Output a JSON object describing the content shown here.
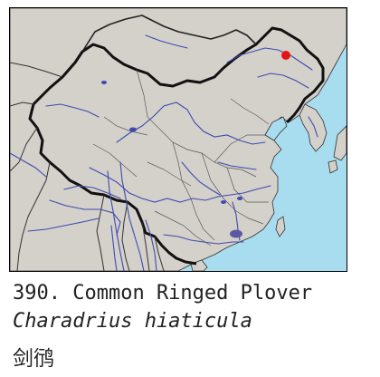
{
  "map": {
    "region": "China",
    "land_color": "#d4d0ca",
    "sea_color": "#a8dcef",
    "border_color": "#111111",
    "river_color": "#3e4ab0",
    "markers": [
      {
        "type": "point-record",
        "color": "#e41414"
      },
      {
        "type": "range-patch",
        "color": "#5b57a3"
      }
    ]
  },
  "caption": {
    "number_line": "390. Common Ringed Plover",
    "latin_name": "Charadrius hiaticula",
    "chinese_name": "剑鸻"
  }
}
